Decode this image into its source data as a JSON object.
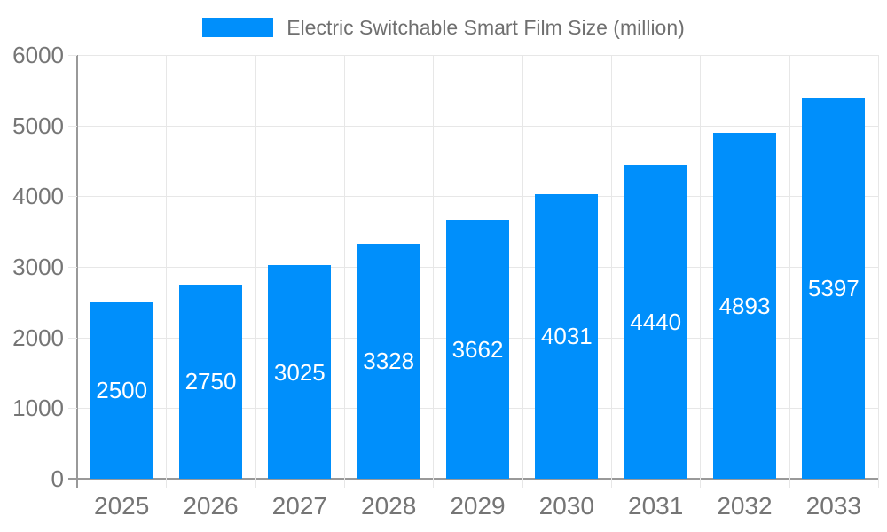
{
  "legend": {
    "label": "Electric Switchable Smart Film Size (million)"
  },
  "chart_data": {
    "type": "bar",
    "title": "Electric Switchable Smart Film Size (million)",
    "categories": [
      "2025",
      "2026",
      "2027",
      "2028",
      "2029",
      "2030",
      "2031",
      "2032",
      "2033"
    ],
    "series": [
      {
        "name": "Electric Switchable Smart Film Size (million)",
        "values": [
          2500,
          2750,
          3025,
          3328,
          3662,
          4031,
          4440,
          4893,
          5397
        ]
      }
    ],
    "values": [
      2500,
      2750,
      3025,
      3328,
      3662,
      4031,
      4440,
      4893,
      5397
    ],
    "value_labels": [
      "2500",
      "2750",
      "3025",
      "3328",
      "3662",
      "4031",
      "4440",
      "4893",
      "5397"
    ],
    "xlabel": "",
    "ylabel": "",
    "ylim": [
      0,
      6000
    ],
    "yticks": [
      0,
      1000,
      2000,
      3000,
      4000,
      5000,
      6000
    ],
    "ytick_labels": [
      "0",
      "1000",
      "2000",
      "3000",
      "4000",
      "5000",
      "6000"
    ],
    "grid": true,
    "legend_position": "top",
    "value_label_position": "inside-center",
    "colors": {
      "bar": "#008FFB",
      "bar_label": "#ffffff",
      "grid": "#e7e7e7",
      "axis_line": "#999999",
      "tick_text": "#757575",
      "legend_text": "#6f6f6f",
      "background": "#ffffff"
    }
  }
}
